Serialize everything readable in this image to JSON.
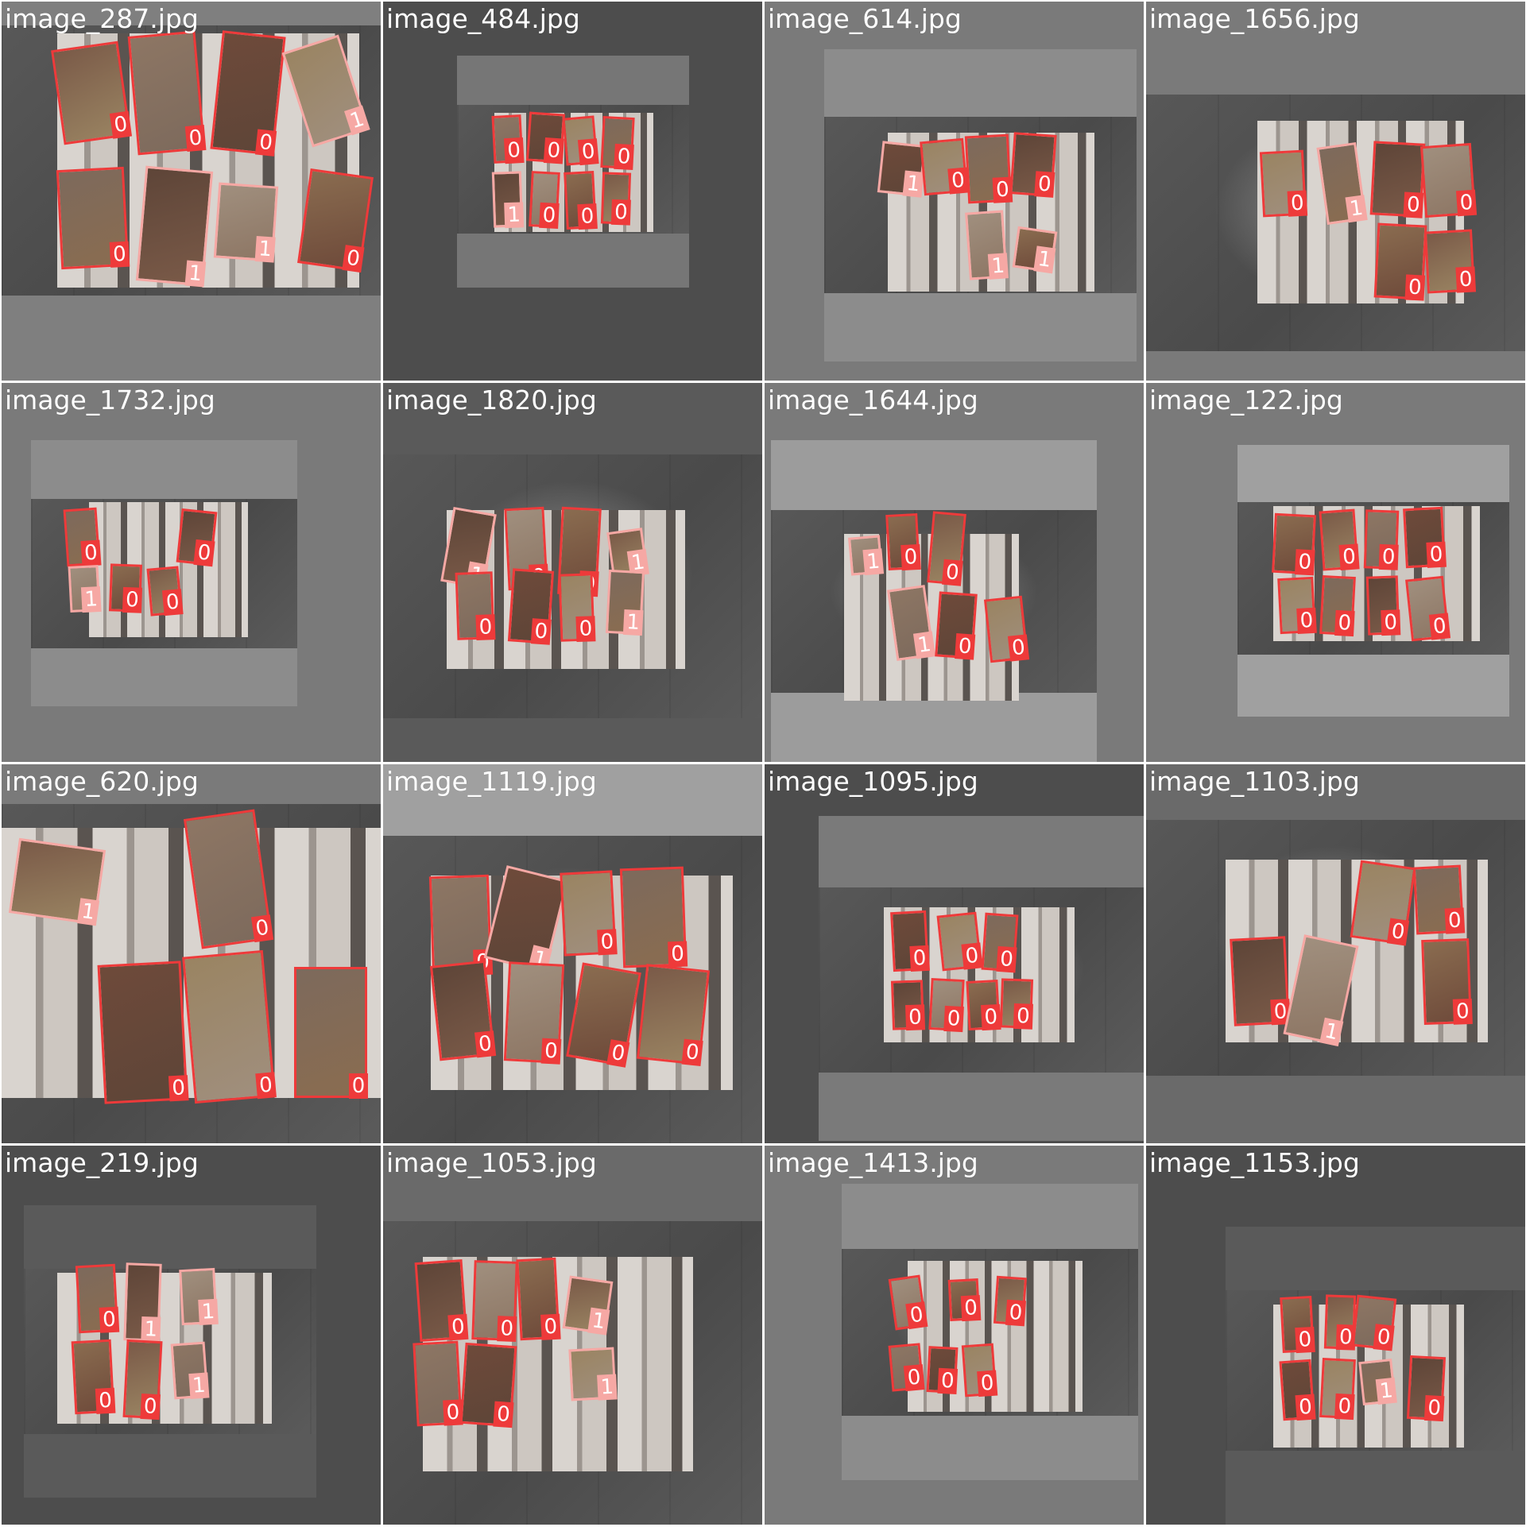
{
  "mosaic": {
    "colors": {
      "class_0": "#ee3a3a",
      "class_1": "#f6a8a4",
      "pad_dark": "#4d4d4d",
      "pad_mid": "#7a7a7a",
      "pad_light": "#9a9a9a"
    },
    "tiles": [
      {
        "filename": "image_287.jpg",
        "labels": [
          "0",
          "0",
          "0",
          "1",
          "0",
          "1",
          "1",
          "0"
        ]
      },
      {
        "filename": "image_484.jpg",
        "labels": [
          "0",
          "0",
          "0",
          "0",
          "1",
          "0",
          "0",
          "0"
        ]
      },
      {
        "filename": "image_614.jpg",
        "labels": [
          "1",
          "0",
          "0",
          "0",
          "1",
          "1"
        ]
      },
      {
        "filename": "image_1656.jpg",
        "labels": [
          "0",
          "1",
          "0",
          "0",
          "0",
          "0"
        ]
      },
      {
        "filename": "image_1732.jpg",
        "labels": [
          "0",
          "0",
          "1",
          "0",
          "0"
        ]
      },
      {
        "filename": "image_1820.jpg",
        "labels": [
          "1",
          "0",
          "0",
          "1",
          "0",
          "0",
          "0",
          "1"
        ]
      },
      {
        "filename": "image_1644.jpg",
        "labels": [
          "1",
          "0",
          "0",
          "1",
          "0",
          "0"
        ]
      },
      {
        "filename": "image_122.jpg",
        "labels": [
          "0",
          "0",
          "0",
          "0",
          "0",
          "0",
          "0",
          "0"
        ]
      },
      {
        "filename": "image_620.jpg",
        "labels": [
          "1",
          "0",
          "0",
          "0",
          "0"
        ]
      },
      {
        "filename": "image_1119.jpg",
        "labels": [
          "0",
          "1",
          "0",
          "0",
          "0",
          "0",
          "0",
          "0"
        ]
      },
      {
        "filename": "image_1095.jpg",
        "labels": [
          "0",
          "0",
          "0",
          "0",
          "0",
          "0",
          "0"
        ]
      },
      {
        "filename": "image_1103.jpg",
        "labels": [
          "0",
          "0",
          "0",
          "1",
          "0"
        ]
      },
      {
        "filename": "image_219.jpg",
        "labels": [
          "0",
          "1",
          "1",
          "0",
          "0",
          "1"
        ]
      },
      {
        "filename": "image_1053.jpg",
        "labels": [
          "0",
          "0",
          "0",
          "1",
          "0",
          "0",
          "1"
        ]
      },
      {
        "filename": "image_1413.jpg",
        "labels": [
          "0",
          "0",
          "0",
          "0",
          "0",
          "0"
        ]
      },
      {
        "filename": "image_1153.jpg",
        "labels": [
          "0",
          "0",
          "0",
          "0",
          "0",
          "1",
          "0"
        ]
      }
    ]
  }
}
